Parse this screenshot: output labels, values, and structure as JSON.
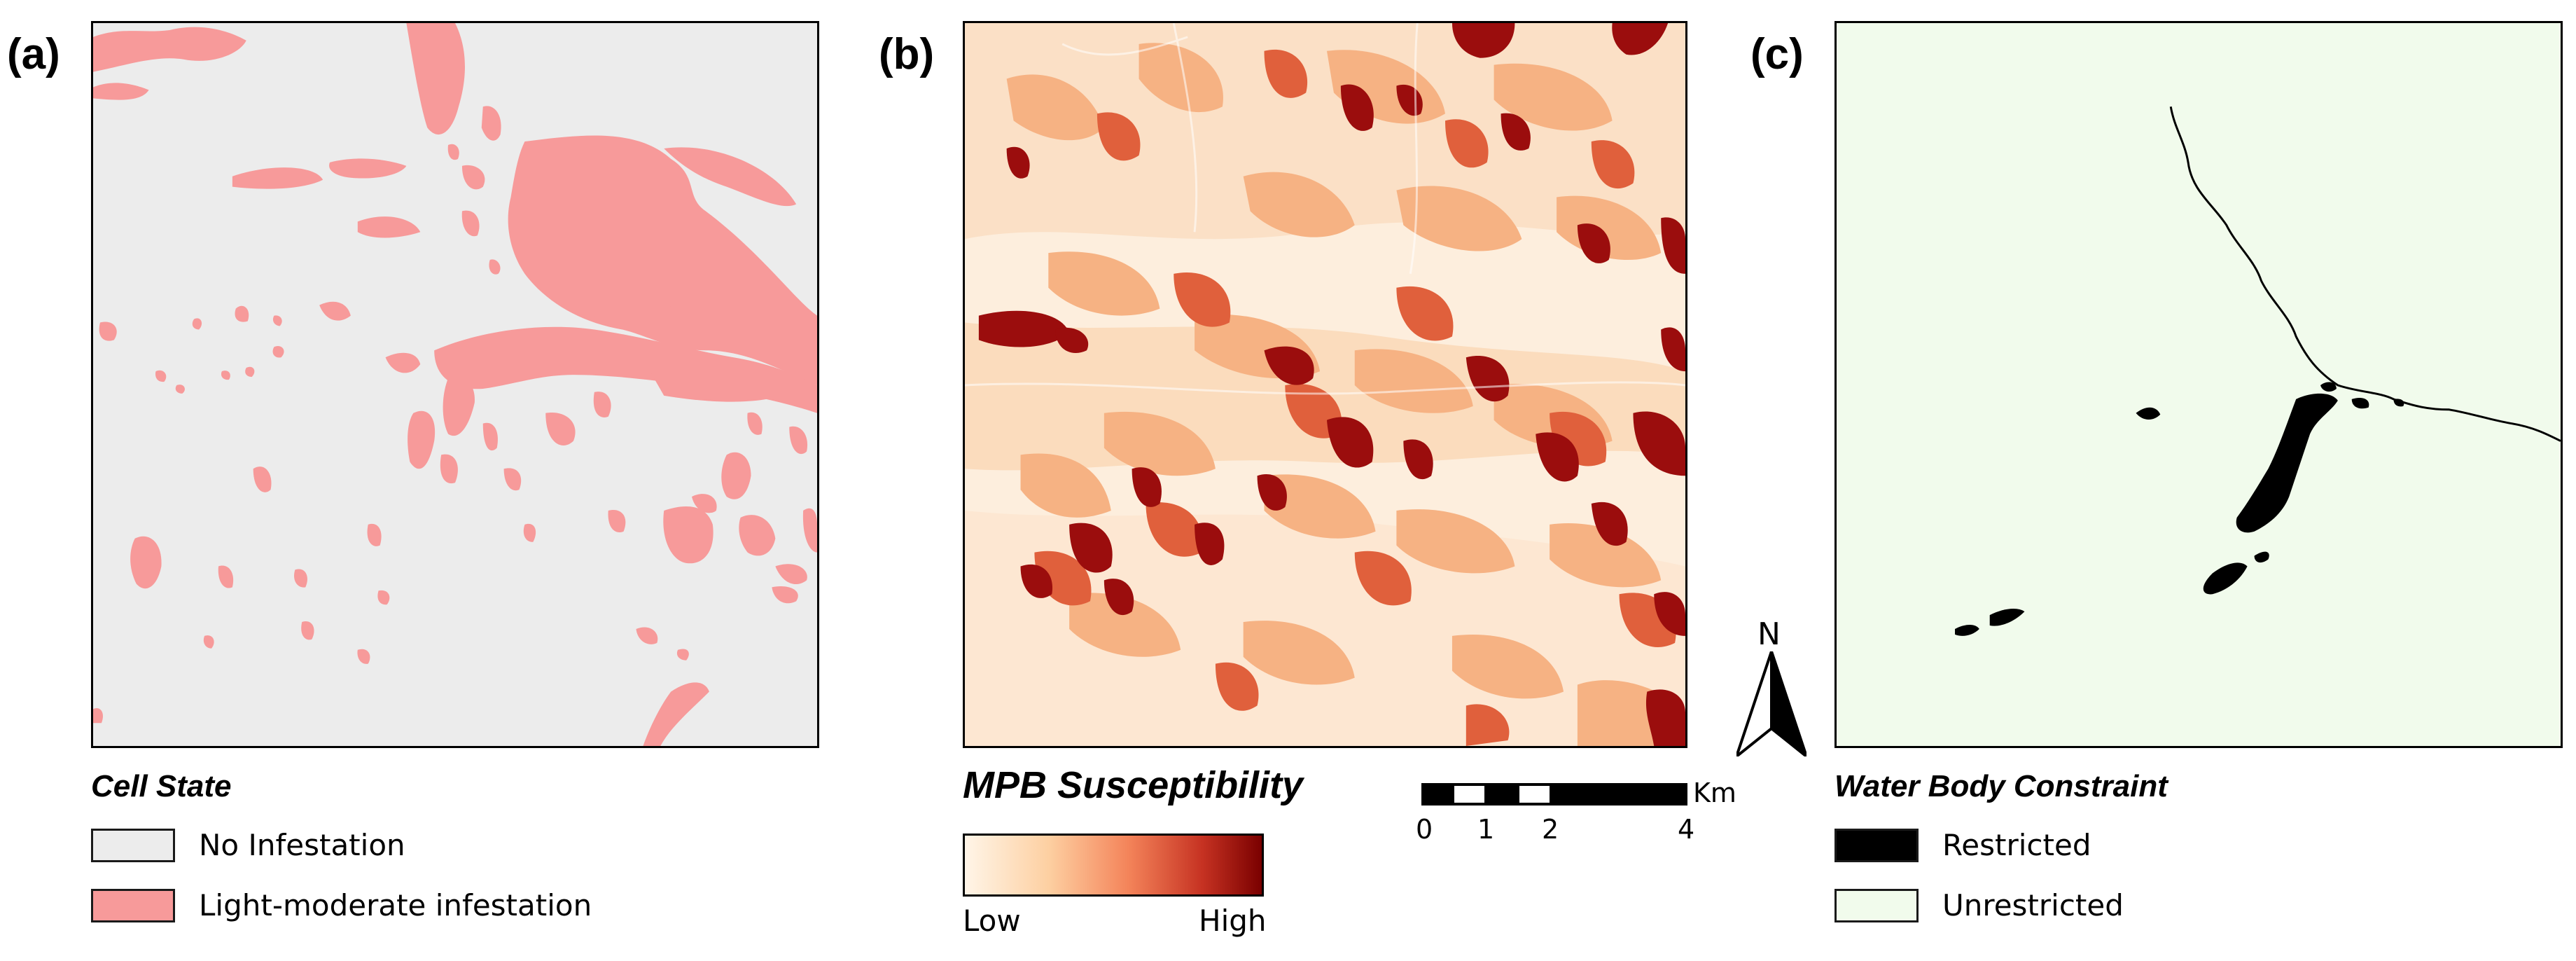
{
  "panels": {
    "a": {
      "label": "(a)",
      "legend_title": "Cell State",
      "items": [
        {
          "label": "No Infestation",
          "color": "#ececec"
        },
        {
          "label": "Light-moderate infestation",
          "color": "#f79a9a"
        }
      ]
    },
    "b": {
      "label": "(b)",
      "legend_title": "MPB Susceptibility",
      "ramp_low": "Low",
      "ramp_high": "High",
      "ramp_colors": [
        "#fff5e8",
        "#fdd0a2",
        "#f4845a",
        "#c63222",
        "#7a0000"
      ]
    },
    "c": {
      "label": "(c)",
      "legend_title": "Water Body Constraint",
      "items": [
        {
          "label": "Restricted",
          "color": "#000000"
        },
        {
          "label": "Unrestricted",
          "color": "#f1fbec"
        }
      ]
    }
  },
  "north_arrow": {
    "label": "N"
  },
  "scale_bar": {
    "unit": "Km",
    "ticks": [
      "0",
      "1",
      "2",
      "4"
    ]
  }
}
